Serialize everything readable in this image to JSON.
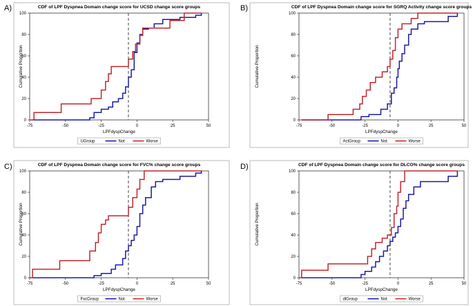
{
  "panels": [
    {
      "label": "A)"
    },
    {
      "label": "B)"
    },
    {
      "label": "C)"
    },
    {
      "label": "D)"
    }
  ],
  "colors": {
    "not": "#1a1aa6",
    "worse": "#c0272d",
    "ref": "#444444"
  },
  "chart_data": [
    {
      "type": "line",
      "step": true,
      "title": "CDF of LPF Dyspnea Domain change score for UCSD change score groups",
      "xlabel": "LPFdyspChange",
      "ylabel": "Cumulative Proportion",
      "xlim": [
        -75,
        50
      ],
      "ylim": [
        0,
        100
      ],
      "xticks": [
        -75,
        -50,
        -25,
        0,
        25,
        50
      ],
      "yticks": [
        0,
        20,
        40,
        60,
        80,
        100
      ],
      "reference_line_x": -6,
      "legend_title": "UGroup",
      "series": [
        {
          "name": "Not",
          "color": "#1a1aa6",
          "x": [
            -73,
            -33,
            -30,
            -25,
            -20,
            -17,
            -13,
            -10,
            -8,
            -6,
            -4,
            -2,
            0,
            2,
            4,
            8,
            12,
            18,
            30,
            41,
            45
          ],
          "y": [
            0,
            2,
            7,
            10,
            12,
            17,
            20,
            25,
            31,
            40,
            47,
            63,
            72,
            80,
            85,
            86,
            90,
            94,
            96,
            98,
            100
          ]
        },
        {
          "name": "Worse",
          "color": "#c0272d",
          "x": [
            -75,
            -72,
            -53,
            -32,
            -25,
            -22,
            -20,
            -18,
            -6,
            -3,
            -1,
            2,
            4,
            8,
            15,
            23,
            33,
            45
          ],
          "y": [
            0,
            7,
            15,
            20,
            28,
            36,
            43,
            50,
            57,
            64,
            71,
            79,
            86,
            86,
            86,
            93,
            100,
            100
          ]
        }
      ]
    },
    {
      "type": "line",
      "step": true,
      "title": "CDF of LPF Dyspnea Domain change score for SGRQ Activity change score groups",
      "xlabel": "LPFdyspChange",
      "ylabel": "Cumulative Proportion",
      "xlim": [
        -75,
        50
      ],
      "ylim": [
        0,
        100
      ],
      "xticks": [
        -75,
        -50,
        -25,
        0,
        25,
        50
      ],
      "yticks": [
        0,
        20,
        40,
        60,
        80,
        100
      ],
      "reference_line_x": -6,
      "legend_title": "ActGroup",
      "series": [
        {
          "name": "Not",
          "color": "#1a1aa6",
          "x": [
            -73,
            -28,
            -22,
            -13,
            -8,
            -5,
            -3,
            -1,
            0,
            1,
            3,
            5,
            8,
            10,
            15,
            20,
            38,
            45
          ],
          "y": [
            0,
            3,
            5,
            10,
            15,
            25,
            30,
            40,
            48,
            55,
            62,
            70,
            80,
            85,
            90,
            92,
            97,
            100
          ]
        },
        {
          "name": "Worse",
          "color": "#c0272d",
          "x": [
            -73,
            -53,
            -34,
            -29,
            -27,
            -24,
            -21,
            -17,
            -12,
            -8,
            -6,
            -4,
            -2,
            0,
            3,
            10,
            15,
            45
          ],
          "y": [
            0,
            5,
            10,
            15,
            22,
            28,
            35,
            40,
            45,
            50,
            57,
            65,
            77,
            85,
            90,
            95,
            100,
            100
          ]
        }
      ]
    },
    {
      "type": "line",
      "step": true,
      "title": "CDF of LPF Dyspnea Domain change score for FVC% change score groups",
      "xlabel": "LPFdyspChange",
      "ylabel": "Cumulative Proportion",
      "xlim": [
        -75,
        50
      ],
      "ylim": [
        0,
        100
      ],
      "xticks": [
        -75,
        -50,
        -25,
        0,
        25,
        50
      ],
      "yticks": [
        0,
        20,
        40,
        60,
        80,
        100
      ],
      "reference_line_x": -6,
      "legend_title": "FvcGroup",
      "series": [
        {
          "name": "Not",
          "color": "#1a1aa6",
          "x": [
            -73,
            -30,
            -25,
            -18,
            -15,
            -10,
            -8,
            -6,
            -4,
            -2,
            0,
            2,
            4,
            6,
            10,
            13,
            18,
            30,
            41,
            45
          ],
          "y": [
            0,
            2,
            4,
            8,
            12,
            18,
            25,
            30,
            35,
            40,
            48,
            60,
            68,
            75,
            85,
            90,
            92,
            95,
            98,
            100
          ]
        },
        {
          "name": "Worse",
          "color": "#c0272d",
          "x": [
            -75,
            -73,
            -54,
            -33,
            -29,
            -27,
            -25,
            -22,
            -20,
            -17,
            -12,
            -6,
            -3,
            0,
            2,
            5,
            45
          ],
          "y": [
            0,
            8,
            16,
            25,
            33,
            42,
            50,
            54,
            58,
            58,
            58,
            66,
            75,
            83,
            92,
            100,
            100
          ]
        }
      ]
    },
    {
      "type": "line",
      "step": true,
      "title": "CDF of LPF Dyspnea Domain change score for DLCO% change score groups",
      "xlabel": "LPFdyspChange",
      "ylabel": "Cumulative Proportion",
      "xlim": [
        -75,
        50
      ],
      "ylim": [
        0,
        100
      ],
      "xticks": [
        -75,
        -50,
        -25,
        0,
        25,
        50
      ],
      "yticks": [
        0,
        20,
        40,
        60,
        80,
        100
      ],
      "reference_line_x": -6,
      "legend_title": "dlGroup",
      "series": [
        {
          "name": "Not",
          "color": "#1a1aa6",
          "x": [
            -73,
            -28,
            -25,
            -20,
            -17,
            -14,
            -11,
            -8,
            -6,
            -4,
            -2,
            0,
            2,
            4,
            6,
            8,
            12,
            17,
            38,
            45
          ],
          "y": [
            0,
            3,
            6,
            10,
            15,
            20,
            25,
            30,
            34,
            38,
            42,
            48,
            55,
            65,
            72,
            78,
            85,
            90,
            95,
            100
          ]
        },
        {
          "name": "Worse",
          "color": "#c0272d",
          "x": [
            -75,
            -73,
            -53,
            -23,
            -20,
            -17,
            -12,
            -8,
            -5,
            -3,
            -1,
            0,
            2,
            5,
            45
          ],
          "y": [
            0,
            7,
            13,
            20,
            27,
            33,
            37,
            40,
            47,
            60,
            67,
            80,
            90,
            100,
            100
          ]
        }
      ]
    }
  ]
}
